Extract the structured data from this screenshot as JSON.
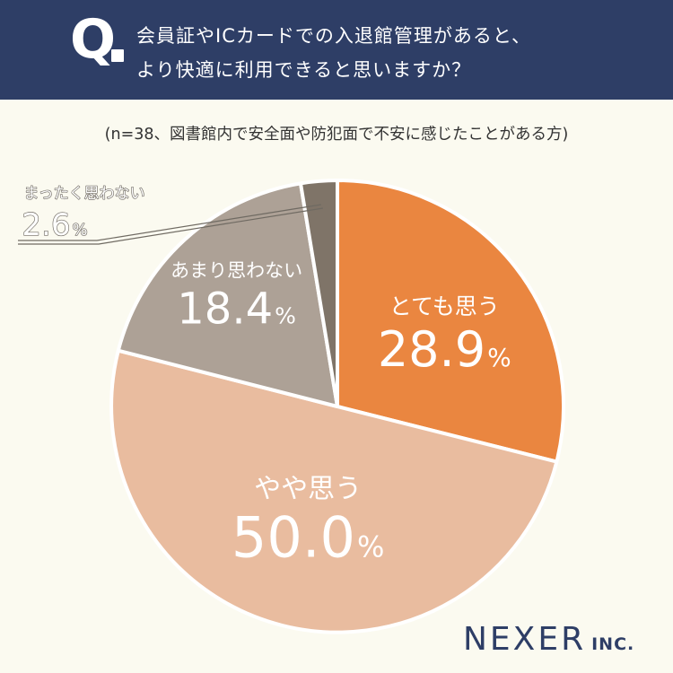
{
  "header": {
    "q_label": "Q",
    "question_line1": "会員証やICカードでの入退館管理があると、",
    "question_line2": "より快適に利用できると思いますか？"
  },
  "subtitle": "(n=38、図書館内で安全面や防犯面で不安に感じたことがある方)",
  "chart_data": {
    "type": "pie",
    "title": "",
    "labels": [
      "とても思う",
      "やや思う",
      "あまり思わない",
      "まったく思わない"
    ],
    "values": [
      28.9,
      50.0,
      18.4,
      2.6
    ],
    "value_labels": [
      "28.9",
      "50.0",
      "18.4",
      "2.6"
    ],
    "percent_symbol": "%",
    "colors": [
      "#ea8640",
      "#e9bc9f",
      "#ada196",
      "#7f7468"
    ],
    "start_angle_deg": 0,
    "direction": "clockwise"
  },
  "logo": {
    "main": "NEXER",
    "sub": "INC."
  }
}
